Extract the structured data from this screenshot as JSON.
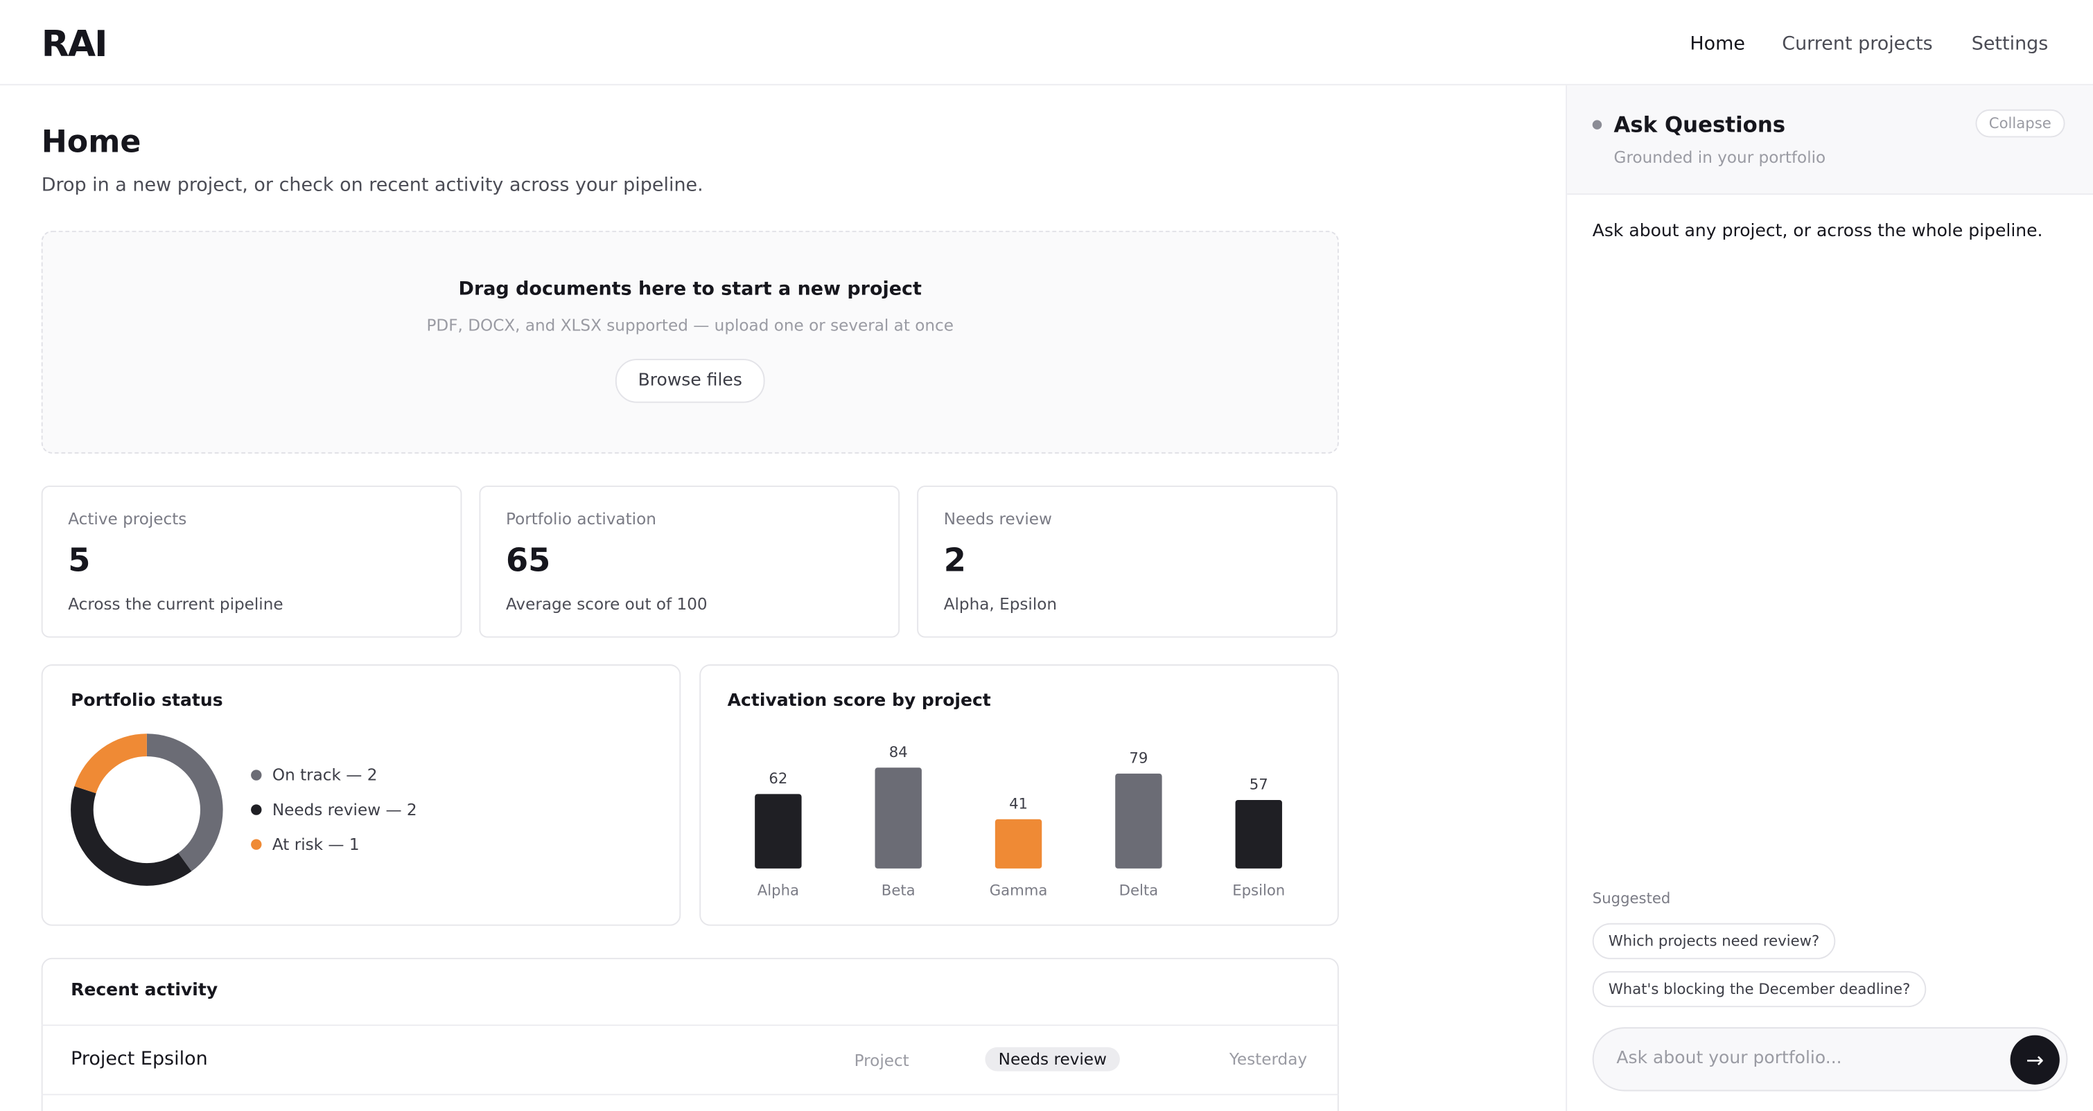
{
  "nav": {
    "logo": "RAI",
    "links": [
      "Home",
      "Current projects",
      "Settings"
    ]
  },
  "header": {
    "title": "Home",
    "subtitle": "Drop in a new project, or check on recent activity across your pipeline."
  },
  "upload": {
    "title": "Drag documents here to start a new project",
    "hint": "PDF, DOCX, and XLSX supported — upload one or several at once",
    "button": "Browse files"
  },
  "stats": [
    {
      "label": "Active projects",
      "value": 5,
      "note": "Across the current pipeline"
    },
    {
      "label": "Portfolio activation",
      "value": 65,
      "note": "Average score out of 100"
    },
    {
      "label": "Needs review",
      "value": 2,
      "note": "Alpha, Epsilon"
    }
  ],
  "portfolio_status": {
    "chart_data": {
      "type": "donut",
      "title": "Portfolio status",
      "categories": [
        "On track",
        "Needs review",
        "At risk"
      ],
      "values": [
        2,
        2,
        1
      ],
      "value_labels": [
        "On track — 2",
        "Needs review — 2",
        "At risk — 1"
      ],
      "colors": [
        "#6b6c75",
        "#1f1f24",
        "#ef8a35"
      ]
    }
  },
  "activation": {
    "chart_data": {
      "type": "bar",
      "title": "Activation score by project",
      "categories": [
        "Alpha",
        "Beta",
        "Gamma",
        "Delta",
        "Epsilon"
      ],
      "values": [
        62,
        84,
        41,
        79,
        57
      ],
      "colors": [
        "#1f1f24",
        "#6b6c75",
        "#ef8a35",
        "#6b6c75",
        "#1f1f24"
      ],
      "ylim": [
        0,
        100
      ]
    }
  },
  "recent_activity": {
    "title": "Recent activity",
    "rows": [
      [
        "Project Epsilon",
        "Project",
        "Needs review",
        "Yesterday"
      ]
    ]
  },
  "ask_panel": {
    "title": "Ask Questions",
    "subtitle": "Grounded in your portfolio",
    "collapse": "Collapse",
    "intro": "Ask about any project, or across the whole pipeline.",
    "suggested_label": "Suggested",
    "suggestions": [
      "Which projects need review?",
      "What's blocking the December deadline?"
    ],
    "input_placeholder": "Ask about your portfolio...",
    "send": "→"
  }
}
